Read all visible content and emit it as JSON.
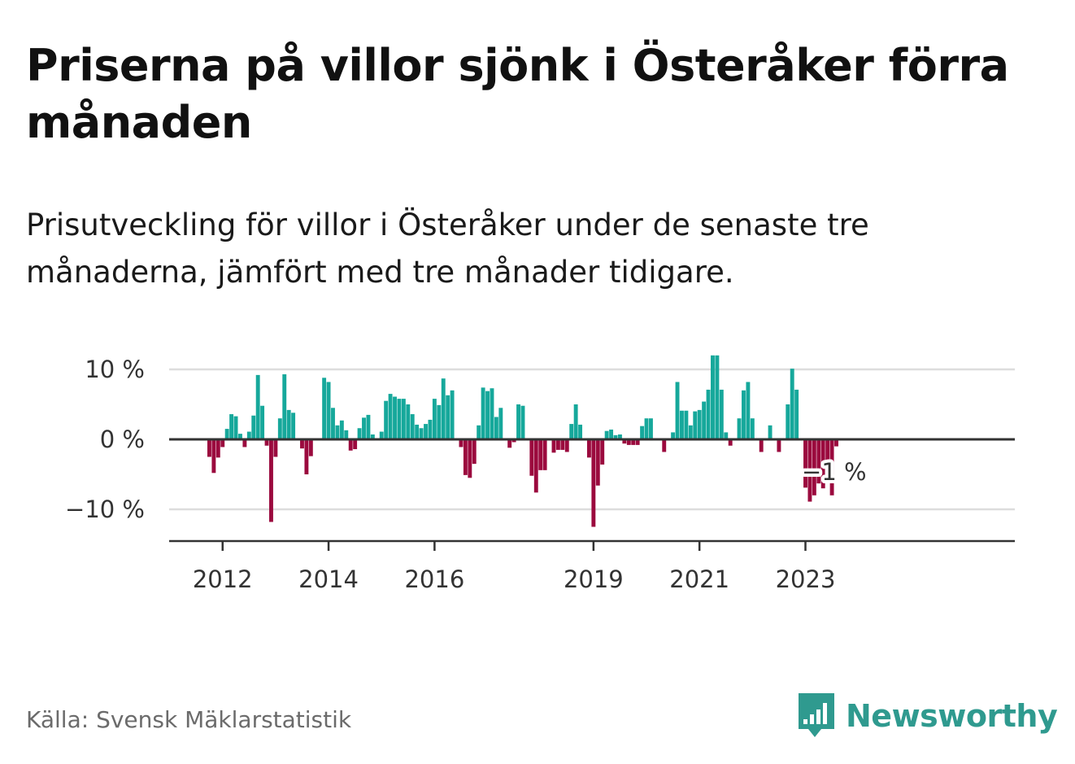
{
  "header": {
    "title": "Priserna på villor sjönk i Österåker förra månaden",
    "subtitle": "Prisutveckling för villor i Österåker under de senaste tre månaderna, jämfört med tre månader tidigare."
  },
  "footer": {
    "source": "Källa: Svensk Mäklarstatistik",
    "brand": "Newsworthy",
    "brand_icon": "bar-chart-speech-bubble-icon"
  },
  "colors": {
    "positive": "#16a89b",
    "negative": "#9b0a3e",
    "axis": "#333333",
    "grid": "#dddddd",
    "brand": "#2f9a8f"
  },
  "chart_data": {
    "type": "bar",
    "x_start": "2011-10",
    "frequency": "monthly",
    "xtick_labels": [
      "2012",
      "2014",
      "2016",
      "2019",
      "2021",
      "2023"
    ],
    "ytick_labels": [
      "10 %",
      "0 %",
      "−10 %"
    ],
    "yticks": [
      10,
      0,
      -10
    ],
    "ylim": [
      -14,
      12
    ],
    "grid": true,
    "annotation": {
      "text": "−1 %",
      "target": "last"
    },
    "values": [
      -2.5,
      -4.8,
      -2.6,
      -1.1,
      1.5,
      3.6,
      3.3,
      0.8,
      -1.1,
      1.1,
      3.4,
      9.2,
      4.8,
      -0.9,
      -11.8,
      -2.5,
      3.0,
      9.3,
      4.2,
      3.8,
      0,
      -1.3,
      -5.0,
      -2.4,
      0,
      0,
      8.8,
      8.2,
      4.5,
      2.0,
      2.7,
      1.3,
      -1.6,
      -1.4,
      1.6,
      3.1,
      3.5,
      0.7,
      0,
      1.1,
      5.5,
      6.5,
      6.1,
      5.8,
      5.8,
      5.0,
      3.6,
      2.1,
      1.6,
      2.2,
      2.8,
      5.8,
      4.9,
      8.7,
      6.3,
      7.0,
      0,
      -1.1,
      -5.1,
      -5.5,
      -3.5,
      2.0,
      7.4,
      6.9,
      7.3,
      3.2,
      4.5,
      0,
      -1.2,
      -0.4,
      5.0,
      4.8,
      0,
      -5.2,
      -7.6,
      -4.4,
      -4.4,
      0,
      -1.9,
      -1.5,
      -1.5,
      -1.8,
      2.2,
      5.0,
      2.1,
      0,
      -2.6,
      -12.5,
      -6.6,
      -3.6,
      1.2,
      1.4,
      0.6,
      0.7,
      -0.6,
      -0.8,
      -0.8,
      -0.8,
      1.9,
      3.0,
      3.0,
      0,
      0,
      -1.8,
      0,
      1.0,
      8.2,
      4.1,
      4.1,
      2.0,
      4.0,
      4.2,
      5.4,
      7.1,
      12.0,
      12.0,
      7.1,
      1.0,
      -0.9,
      0,
      3.0,
      7.0,
      8.2,
      3.0,
      0,
      -1.8,
      0,
      2.0,
      0,
      -1.8,
      0,
      5.0,
      10.1,
      7.1,
      0,
      -6.9,
      -8.9,
      -8.0,
      -6.3,
      -7.0,
      -6.0,
      -8.0,
      -1.0
    ]
  }
}
